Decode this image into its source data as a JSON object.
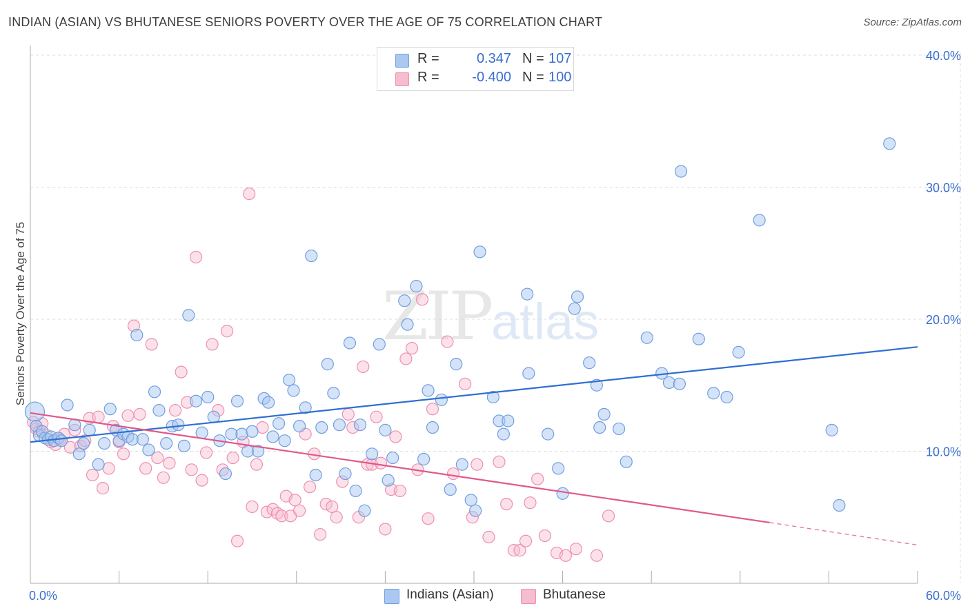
{
  "title": "INDIAN (ASIAN) VS BHUTANESE SENIORS POVERTY OVER THE AGE OF 75 CORRELATION CHART",
  "source": "Source: ZipAtlas.com",
  "watermark": {
    "zip": "ZIP",
    "atlas": "atlas"
  },
  "legend": {
    "rows": [
      {
        "r_label": "R =",
        "r_value": "0.347",
        "n_label": "N =",
        "n_value": "107"
      },
      {
        "r_label": "R =",
        "r_value": "-0.400",
        "n_label": "N =",
        "n_value": "100"
      }
    ]
  },
  "bottom_legend": [
    "Indians (Asian)",
    "Bhutanese"
  ],
  "colors": {
    "blue_fill": "#aac8f0",
    "blue_stroke": "#6f9fe0",
    "blue_line": "#2f6fd0",
    "pink_fill": "#f6bcd0",
    "pink_stroke": "#ee8fb0",
    "pink_line": "#e0588a",
    "axis_text": "#3a6fcf",
    "grid": "#dddddd"
  },
  "chart_data": {
    "type": "scatter",
    "title": "INDIAN (ASIAN) VS BHUTANESE SENIORS POVERTY OVER THE AGE OF 75 CORRELATION CHART",
    "xlabel": "",
    "ylabel": "Seniors Poverty Over the Age of 75",
    "xlim": [
      0,
      60
    ],
    "ylim": [
      0,
      40
    ],
    "x_tick_labels": [
      "0.0%",
      "60.0%"
    ],
    "y_tick_labels": [
      "10.0%",
      "20.0%",
      "30.0%",
      "40.0%"
    ],
    "y_ticks": [
      10,
      20,
      30,
      40
    ],
    "series": [
      {
        "name": "Indians (Asian)",
        "r": 0.347,
        "n": 107,
        "trendline": {
          "x": [
            0,
            60
          ],
          "y": [
            10.7,
            17.9
          ]
        },
        "points": [
          [
            0.3,
            13.0
          ],
          [
            0.4,
            11.9
          ],
          [
            0.6,
            11.2
          ],
          [
            0.8,
            11.5
          ],
          [
            1.0,
            11.0
          ],
          [
            1.2,
            10.9
          ],
          [
            1.4,
            11.1
          ],
          [
            1.6,
            10.8
          ],
          [
            1.9,
            11.0
          ],
          [
            2.1,
            10.8
          ],
          [
            2.5,
            13.5
          ],
          [
            3.0,
            12.0
          ],
          [
            3.3,
            9.8
          ],
          [
            3.6,
            10.6
          ],
          [
            4.0,
            11.6
          ],
          [
            4.6,
            9.0
          ],
          [
            5.0,
            10.6
          ],
          [
            5.4,
            13.2
          ],
          [
            5.8,
            11.6
          ],
          [
            6.0,
            10.8
          ],
          [
            6.3,
            11.3
          ],
          [
            6.6,
            11.1
          ],
          [
            6.9,
            10.9
          ],
          [
            7.2,
            18.8
          ],
          [
            7.6,
            10.9
          ],
          [
            8.0,
            10.1
          ],
          [
            8.4,
            14.5
          ],
          [
            8.7,
            13.1
          ],
          [
            9.2,
            10.6
          ],
          [
            9.6,
            11.9
          ],
          [
            10.0,
            12.0
          ],
          [
            10.4,
            10.4
          ],
          [
            10.7,
            20.3
          ],
          [
            11.2,
            13.8
          ],
          [
            11.6,
            11.4
          ],
          [
            12.0,
            14.1
          ],
          [
            12.4,
            12.6
          ],
          [
            12.8,
            10.8
          ],
          [
            13.2,
            8.3
          ],
          [
            13.6,
            11.3
          ],
          [
            14.0,
            13.8
          ],
          [
            14.3,
            11.3
          ],
          [
            14.7,
            10.0
          ],
          [
            15.0,
            11.5
          ],
          [
            15.4,
            10.0
          ],
          [
            15.8,
            14.0
          ],
          [
            16.1,
            13.7
          ],
          [
            16.4,
            11.1
          ],
          [
            16.8,
            12.1
          ],
          [
            17.2,
            10.8
          ],
          [
            17.5,
            15.4
          ],
          [
            17.8,
            14.6
          ],
          [
            18.2,
            11.9
          ],
          [
            18.6,
            13.3
          ],
          [
            19.0,
            24.8
          ],
          [
            19.3,
            8.2
          ],
          [
            19.7,
            11.8
          ],
          [
            20.1,
            16.6
          ],
          [
            20.5,
            14.4
          ],
          [
            20.9,
            12.0
          ],
          [
            21.3,
            8.3
          ],
          [
            21.6,
            18.2
          ],
          [
            22.0,
            7.0
          ],
          [
            22.3,
            12.0
          ],
          [
            22.6,
            5.5
          ],
          [
            23.1,
            9.8
          ],
          [
            23.6,
            18.1
          ],
          [
            24.0,
            11.6
          ],
          [
            24.2,
            7.8
          ],
          [
            24.5,
            9.5
          ],
          [
            25.3,
            21.4
          ],
          [
            25.5,
            19.6
          ],
          [
            26.1,
            22.5
          ],
          [
            26.6,
            9.4
          ],
          [
            26.9,
            14.6
          ],
          [
            27.2,
            11.8
          ],
          [
            27.8,
            13.9
          ],
          [
            28.4,
            7.1
          ],
          [
            28.8,
            16.6
          ],
          [
            29.2,
            9.0
          ],
          [
            29.8,
            6.3
          ],
          [
            30.1,
            5.5
          ],
          [
            30.4,
            25.1
          ],
          [
            31.3,
            14.1
          ],
          [
            31.7,
            12.3
          ],
          [
            32.0,
            11.3
          ],
          [
            32.3,
            12.3
          ],
          [
            33.6,
            21.9
          ],
          [
            33.7,
            15.9
          ],
          [
            35.0,
            11.3
          ],
          [
            35.7,
            8.7
          ],
          [
            36.0,
            6.8
          ],
          [
            36.8,
            20.8
          ],
          [
            37.0,
            21.7
          ],
          [
            37.8,
            16.7
          ],
          [
            38.3,
            15.0
          ],
          [
            38.5,
            11.8
          ],
          [
            38.8,
            12.8
          ],
          [
            39.8,
            11.7
          ],
          [
            40.3,
            9.2
          ],
          [
            41.7,
            18.6
          ],
          [
            42.7,
            15.9
          ],
          [
            43.2,
            15.2
          ],
          [
            43.9,
            15.1
          ],
          [
            44.0,
            31.2
          ],
          [
            45.2,
            18.5
          ],
          [
            46.2,
            14.4
          ],
          [
            47.1,
            14.1
          ],
          [
            47.9,
            17.5
          ],
          [
            49.3,
            27.5
          ],
          [
            54.2,
            11.6
          ],
          [
            54.7,
            5.9
          ],
          [
            58.1,
            33.3
          ]
        ]
      },
      {
        "name": "Bhutanese",
        "r": -0.4,
        "n": 100,
        "trendline": {
          "x": [
            0,
            50
          ],
          "y": [
            12.9,
            4.6
          ],
          "dashed_extension": {
            "x": [
              50,
              60
            ],
            "y": [
              4.6,
              2.9
            ]
          }
        },
        "points": [
          [
            0.2,
            12.2
          ],
          [
            0.4,
            11.7
          ],
          [
            0.6,
            11.5
          ],
          [
            0.8,
            12.1
          ],
          [
            1.1,
            11.2
          ],
          [
            1.4,
            10.7
          ],
          [
            1.7,
            10.5
          ],
          [
            2.0,
            10.9
          ],
          [
            2.3,
            11.3
          ],
          [
            2.7,
            10.3
          ],
          [
            3.0,
            11.6
          ],
          [
            3.4,
            10.4
          ],
          [
            3.7,
            10.8
          ],
          [
            4.0,
            12.5
          ],
          [
            4.2,
            8.2
          ],
          [
            4.6,
            12.6
          ],
          [
            4.9,
            7.2
          ],
          [
            5.3,
            8.7
          ],
          [
            5.6,
            11.9
          ],
          [
            6.0,
            10.7
          ],
          [
            6.3,
            9.8
          ],
          [
            6.6,
            12.7
          ],
          [
            7.0,
            19.5
          ],
          [
            7.4,
            12.8
          ],
          [
            7.8,
            8.7
          ],
          [
            8.2,
            18.1
          ],
          [
            8.6,
            9.5
          ],
          [
            9.0,
            8.0
          ],
          [
            9.4,
            9.1
          ],
          [
            9.8,
            13.1
          ],
          [
            10.2,
            16.0
          ],
          [
            10.6,
            13.7
          ],
          [
            10.9,
            8.6
          ],
          [
            11.2,
            24.7
          ],
          [
            11.6,
            7.8
          ],
          [
            11.9,
            9.9
          ],
          [
            12.3,
            18.1
          ],
          [
            12.7,
            13.1
          ],
          [
            13.0,
            8.6
          ],
          [
            13.3,
            19.1
          ],
          [
            13.7,
            9.5
          ],
          [
            14.0,
            3.2
          ],
          [
            14.4,
            10.7
          ],
          [
            14.8,
            29.5
          ],
          [
            15.0,
            5.8
          ],
          [
            15.3,
            9.0
          ],
          [
            15.7,
            11.8
          ],
          [
            16.0,
            5.4
          ],
          [
            16.4,
            5.6
          ],
          [
            16.7,
            5.3
          ],
          [
            17.0,
            5.1
          ],
          [
            17.3,
            6.6
          ],
          [
            17.6,
            5.1
          ],
          [
            17.9,
            6.3
          ],
          [
            18.2,
            5.5
          ],
          [
            18.6,
            11.3
          ],
          [
            18.9,
            7.3
          ],
          [
            19.2,
            9.8
          ],
          [
            19.6,
            3.7
          ],
          [
            20.0,
            6.0
          ],
          [
            20.4,
            5.8
          ],
          [
            20.7,
            5.0
          ],
          [
            21.1,
            7.7
          ],
          [
            21.5,
            12.8
          ],
          [
            21.8,
            11.8
          ],
          [
            22.2,
            5.0
          ],
          [
            22.5,
            16.4
          ],
          [
            22.8,
            9.0
          ],
          [
            23.1,
            9.0
          ],
          [
            23.4,
            12.6
          ],
          [
            23.7,
            9.1
          ],
          [
            24.0,
            4.1
          ],
          [
            24.4,
            7.1
          ],
          [
            24.7,
            11.1
          ],
          [
            25.0,
            7.0
          ],
          [
            25.4,
            17.0
          ],
          [
            25.8,
            17.8
          ],
          [
            26.2,
            8.6
          ],
          [
            26.5,
            21.5
          ],
          [
            26.9,
            4.9
          ],
          [
            27.2,
            13.2
          ],
          [
            28.2,
            18.3
          ],
          [
            28.6,
            8.3
          ],
          [
            29.4,
            15.1
          ],
          [
            29.9,
            5.0
          ],
          [
            30.2,
            9.0
          ],
          [
            31.0,
            3.5
          ],
          [
            31.7,
            9.2
          ],
          [
            32.2,
            6.0
          ],
          [
            32.7,
            2.5
          ],
          [
            33.1,
            2.5
          ],
          [
            33.5,
            3.2
          ],
          [
            33.8,
            6.1
          ],
          [
            34.3,
            7.9
          ],
          [
            34.8,
            3.6
          ],
          [
            35.6,
            2.3
          ],
          [
            36.2,
            2.1
          ],
          [
            36.9,
            2.6
          ],
          [
            38.3,
            2.1
          ],
          [
            39.1,
            5.1
          ]
        ]
      }
    ]
  }
}
